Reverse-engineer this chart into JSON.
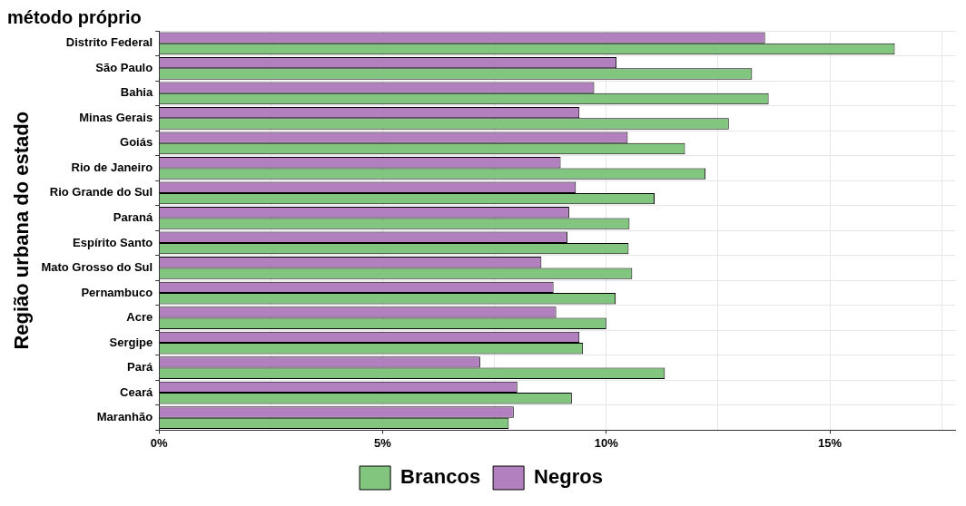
{
  "chart_data": {
    "type": "bar",
    "orientation": "horizontal",
    "title": "método próprio",
    "ylabel": "Região urbana do estado",
    "categories": [
      "Distrito Federal",
      "São Paulo",
      "Bahia",
      "Minas Gerais",
      "Goiás",
      "Rio de Janeiro",
      "Rio Grande do Sul",
      "Paraná",
      "Espírito Santo",
      "Mato Grosso do Sul",
      "Pernambuco",
      "Acre",
      "Sergipe",
      "Pará",
      "Ceará",
      "Maranhão"
    ],
    "series": [
      {
        "name": "Brancos",
        "color": "#82c57f",
        "values": [
          16.45,
          13.26,
          13.63,
          12.74,
          11.76,
          12.22,
          11.08,
          10.52,
          10.5,
          10.58,
          10.21,
          10.0,
          9.48,
          11.31,
          9.23,
          7.82
        ]
      },
      {
        "name": "Negros",
        "color": "#b280bf",
        "values": [
          13.55,
          10.23,
          9.73,
          9.4,
          10.48,
          8.98,
          9.32,
          9.17,
          9.13,
          8.55,
          8.82,
          8.88,
          9.4,
          7.18,
          8.01,
          7.93
        ]
      }
    ],
    "xlim": [
      0,
      17.8
    ],
    "xticks": [
      {
        "value": 0,
        "label": "0%"
      },
      {
        "value": 2.5,
        "label": null
      },
      {
        "value": 5,
        "label": "5%"
      },
      {
        "value": 7.5,
        "label": null
      },
      {
        "value": 10,
        "label": "10%"
      },
      {
        "value": 12.5,
        "label": null
      },
      {
        "value": 15,
        "label": "15%"
      },
      {
        "value": 17.5,
        "label": null
      }
    ],
    "grid": true,
    "legend": "bottom"
  }
}
